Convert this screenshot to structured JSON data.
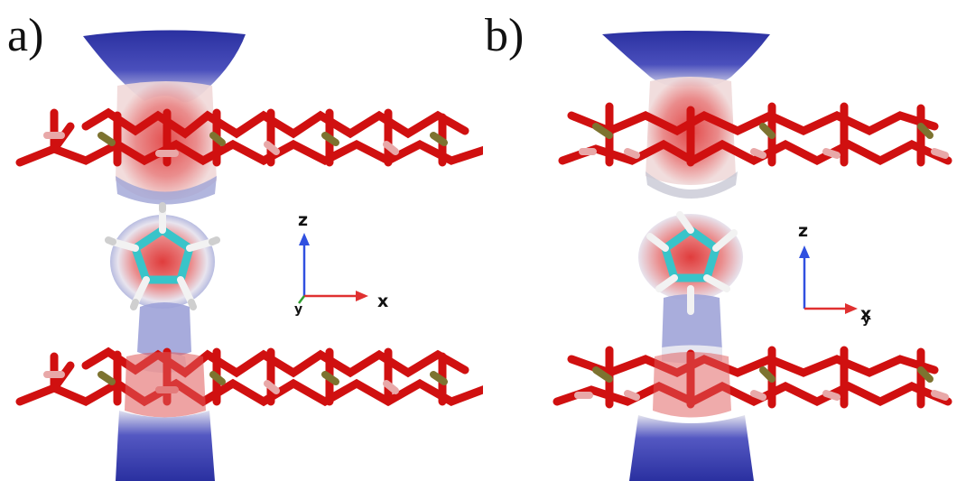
{
  "figure": {
    "panels": [
      {
        "label": "a)",
        "axes": {
          "z": "z",
          "x": "x",
          "y": "y"
        }
      },
      {
        "label": "b)",
        "axes": {
          "z": "z",
          "x": "x",
          "y": "y"
        }
      }
    ],
    "colors": {
      "positive_surface": "#3b3fae",
      "negative_surface": "#d84a4a",
      "oxygen": "#e01010",
      "aluminum": "#e8a8a8",
      "phosphorus": "#7d7330",
      "carbon": "#39c4c9",
      "hydrogen": "#f2f2f2",
      "axis_x": "#e03030",
      "axis_z": "#3050e0",
      "axis_y": "#30a030"
    },
    "molecule": "five-membered-ring",
    "style": "3D molecular rendering with electrostatic potential isosurface"
  }
}
